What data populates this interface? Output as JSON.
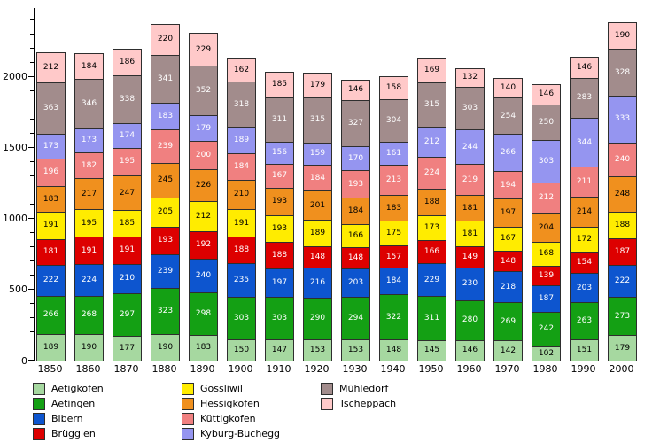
{
  "chart_data": {
    "type": "bar",
    "stacked": true,
    "title": "",
    "xlabel": "",
    "ylabel": "",
    "categories": [
      "1850",
      "1860",
      "1870",
      "1880",
      "1890",
      "1900",
      "1910",
      "1920",
      "1930",
      "1940",
      "1950",
      "1960",
      "1970",
      "1980",
      "1990",
      "2000"
    ],
    "series": [
      {
        "name": "Aetigkofen",
        "color": "#a6d8a0",
        "label_color": "#000000",
        "values": [
          189,
          190,
          177,
          190,
          183,
          150,
          147,
          153,
          153,
          148,
          145,
          146,
          142,
          102,
          151,
          179
        ]
      },
      {
        "name": "Aetingen",
        "color": "#14a014",
        "label_color": "#ffffff",
        "values": [
          266,
          268,
          297,
          323,
          298,
          303,
          303,
          290,
          294,
          322,
          311,
          280,
          269,
          242,
          263,
          273
        ]
      },
      {
        "name": "Bibern",
        "color": "#0d55cf",
        "label_color": "#ffffff",
        "values": [
          222,
          224,
          210,
          239,
          240,
          235,
          197,
          216,
          203,
          184,
          229,
          230,
          218,
          187,
          203,
          222
        ]
      },
      {
        "name": "Brügglen",
        "color": "#dd0000",
        "label_color": "#ffffff",
        "values": [
          181,
          191,
          191,
          193,
          192,
          188,
          188,
          148,
          148,
          157,
          166,
          149,
          148,
          139,
          154,
          187
        ]
      },
      {
        "name": "Gossliwil",
        "color": "#ffec00",
        "label_color": "#000000",
        "values": [
          191,
          195,
          185,
          205,
          212,
          191,
          193,
          189,
          166,
          175,
          173,
          181,
          167,
          168,
          172,
          188
        ]
      },
      {
        "name": "Hessigkofen",
        "color": "#f0901e",
        "label_color": "#000000",
        "values": [
          183,
          217,
          247,
          245,
          226,
          210,
          193,
          201,
          184,
          183,
          188,
          181,
          197,
          204,
          214,
          248
        ]
      },
      {
        "name": "Küttigkofen",
        "color": "#f08080",
        "label_color": "#ffffff",
        "values": [
          196,
          182,
          195,
          239,
          200,
          184,
          167,
          184,
          193,
          213,
          224,
          219,
          194,
          212,
          211,
          240
        ]
      },
      {
        "name": "Kyburg-Buchegg",
        "color": "#9595f0",
        "label_color": "#ffffff",
        "values": [
          173,
          173,
          174,
          183,
          179,
          189,
          156,
          159,
          170,
          161,
          212,
          244,
          266,
          303,
          344,
          333
        ]
      },
      {
        "name": "Mühledorf",
        "color": "#a28c8c",
        "label_color": "#ffffff",
        "values": [
          363,
          346,
          338,
          341,
          352,
          318,
          311,
          315,
          327,
          304,
          315,
          303,
          254,
          250,
          283,
          328
        ]
      },
      {
        "name": "Tscheppach",
        "color": "#ffc9c9",
        "label_color": "#000000",
        "values": [
          212,
          184,
          186,
          220,
          229,
          162,
          185,
          179,
          146,
          158,
          169,
          132,
          140,
          146,
          146,
          190
        ]
      }
    ],
    "yticks": [
      0,
      500,
      1000,
      1500,
      2000
    ],
    "ylim": [
      0,
      2487
    ],
    "y_minor_step": 100,
    "grid": false,
    "legend_position": "bottom",
    "legend_columns": [
      [
        "Aetigkofen",
        "Aetingen",
        "Bibern",
        "Brügglen"
      ],
      [
        "Gossliwil",
        "Hessigkofen",
        "Küttigkofen",
        "Kyburg-Buchegg"
      ],
      [
        "Mühledorf",
        "Tscheppach"
      ]
    ]
  }
}
